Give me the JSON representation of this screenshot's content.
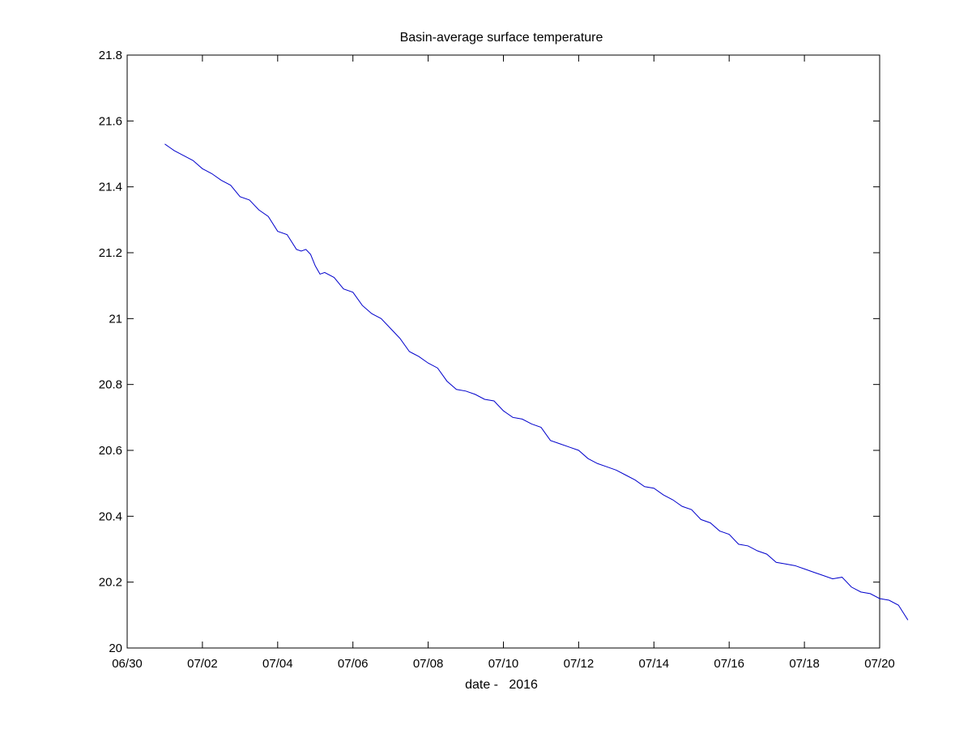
{
  "chart_data": {
    "type": "line",
    "title": "Basin-average surface temperature",
    "xlabel": "date -   2016",
    "ylabel": "",
    "xlim": [
      "2016-06-30",
      "2016-07-20"
    ],
    "ylim": [
      20,
      21.8
    ],
    "grid": false,
    "x_ticks": [
      "06/30",
      "07/02",
      "07/04",
      "07/06",
      "07/08",
      "07/10",
      "07/12",
      "07/14",
      "07/16",
      "07/18",
      "07/20"
    ],
    "y_ticks": [
      "20",
      "20.2",
      "20.4",
      "20.6",
      "20.8",
      "21",
      "21.2",
      "21.4",
      "21.6",
      "21.8"
    ],
    "series": [
      {
        "color": "#0000cc",
        "points": [
          [
            "2016-07-01 00:00",
            21.53
          ],
          [
            "2016-07-01 03:00",
            21.52
          ],
          [
            "2016-07-01 06:00",
            21.51
          ],
          [
            "2016-07-01 12:00",
            21.495
          ],
          [
            "2016-07-01 18:00",
            21.48
          ],
          [
            "2016-07-02 00:00",
            21.455
          ],
          [
            "2016-07-02 06:00",
            21.44
          ],
          [
            "2016-07-02 12:00",
            21.42
          ],
          [
            "2016-07-02 18:00",
            21.405
          ],
          [
            "2016-07-03 00:00",
            21.37
          ],
          [
            "2016-07-03 06:00",
            21.36
          ],
          [
            "2016-07-03 12:00",
            21.33
          ],
          [
            "2016-07-03 18:00",
            21.31
          ],
          [
            "2016-07-04 00:00",
            21.265
          ],
          [
            "2016-07-04 06:00",
            21.255
          ],
          [
            "2016-07-04 12:00",
            21.21
          ],
          [
            "2016-07-04 15:00",
            21.205
          ],
          [
            "2016-07-04 18:00",
            21.21
          ],
          [
            "2016-07-04 21:00",
            21.195
          ],
          [
            "2016-07-05 00:00",
            21.16
          ],
          [
            "2016-07-05 03:00",
            21.135
          ],
          [
            "2016-07-05 06:00",
            21.14
          ],
          [
            "2016-07-05 12:00",
            21.125
          ],
          [
            "2016-07-05 18:00",
            21.09
          ],
          [
            "2016-07-06 00:00",
            21.08
          ],
          [
            "2016-07-06 06:00",
            21.04
          ],
          [
            "2016-07-06 12:00",
            21.015
          ],
          [
            "2016-07-06 18:00",
            21.0
          ],
          [
            "2016-07-07 00:00",
            20.97
          ],
          [
            "2016-07-07 06:00",
            20.94
          ],
          [
            "2016-07-07 12:00",
            20.9
          ],
          [
            "2016-07-07 18:00",
            20.885
          ],
          [
            "2016-07-08 00:00",
            20.865
          ],
          [
            "2016-07-08 06:00",
            20.85
          ],
          [
            "2016-07-08 12:00",
            20.81
          ],
          [
            "2016-07-08 18:00",
            20.785
          ],
          [
            "2016-07-09 00:00",
            20.78
          ],
          [
            "2016-07-09 06:00",
            20.77
          ],
          [
            "2016-07-09 12:00",
            20.755
          ],
          [
            "2016-07-09 18:00",
            20.75
          ],
          [
            "2016-07-10 00:00",
            20.72
          ],
          [
            "2016-07-10 06:00",
            20.7
          ],
          [
            "2016-07-10 12:00",
            20.695
          ],
          [
            "2016-07-10 18:00",
            20.68
          ],
          [
            "2016-07-11 00:00",
            20.67
          ],
          [
            "2016-07-11 06:00",
            20.63
          ],
          [
            "2016-07-11 12:00",
            20.62
          ],
          [
            "2016-07-11 18:00",
            20.61
          ],
          [
            "2016-07-12 00:00",
            20.6
          ],
          [
            "2016-07-12 06:00",
            20.575
          ],
          [
            "2016-07-12 12:00",
            20.56
          ],
          [
            "2016-07-12 18:00",
            20.55
          ],
          [
            "2016-07-13 00:00",
            20.54
          ],
          [
            "2016-07-13 06:00",
            20.525
          ],
          [
            "2016-07-13 12:00",
            20.51
          ],
          [
            "2016-07-13 18:00",
            20.49
          ],
          [
            "2016-07-14 00:00",
            20.485
          ],
          [
            "2016-07-14 06:00",
            20.465
          ],
          [
            "2016-07-14 12:00",
            20.45
          ],
          [
            "2016-07-14 18:00",
            20.43
          ],
          [
            "2016-07-15 00:00",
            20.42
          ],
          [
            "2016-07-15 06:00",
            20.39
          ],
          [
            "2016-07-15 12:00",
            20.38
          ],
          [
            "2016-07-15 18:00",
            20.355
          ],
          [
            "2016-07-16 00:00",
            20.345
          ],
          [
            "2016-07-16 06:00",
            20.315
          ],
          [
            "2016-07-16 12:00",
            20.31
          ],
          [
            "2016-07-16 18:00",
            20.295
          ],
          [
            "2016-07-17 00:00",
            20.285
          ],
          [
            "2016-07-17 06:00",
            20.26
          ],
          [
            "2016-07-17 12:00",
            20.255
          ],
          [
            "2016-07-17 18:00",
            20.25
          ],
          [
            "2016-07-18 00:00",
            20.24
          ],
          [
            "2016-07-18 06:00",
            20.23
          ],
          [
            "2016-07-18 12:00",
            20.22
          ],
          [
            "2016-07-18 18:00",
            20.21
          ],
          [
            "2016-07-19 00:00",
            20.215
          ],
          [
            "2016-07-19 06:00",
            20.185
          ],
          [
            "2016-07-19 12:00",
            20.17
          ],
          [
            "2016-07-19 18:00",
            20.165
          ],
          [
            "2016-07-20 00:00",
            20.15
          ],
          [
            "2016-07-20 06:00",
            20.145
          ],
          [
            "2016-07-20 12:00",
            20.13
          ],
          [
            "2016-07-20 18:00",
            20.085
          ]
        ]
      }
    ]
  }
}
